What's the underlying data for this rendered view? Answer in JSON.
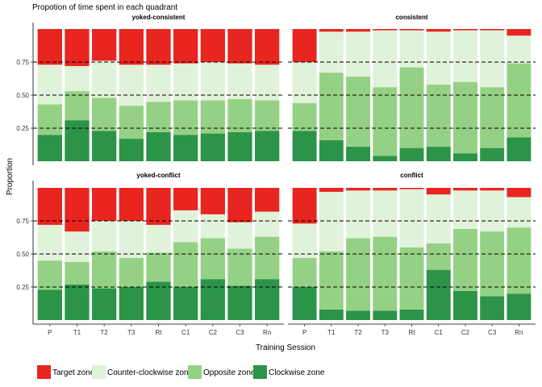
{
  "chart_data": {
    "type": "bar",
    "stacked": true,
    "title": "Propotion of time spent in each quadrant",
    "xlabel": "Training Session",
    "ylabel": "Proportion",
    "ylim": [
      0,
      1
    ],
    "yticks": [
      "0.25",
      "0.50",
      "0.75"
    ],
    "ytick_values": [
      0.25,
      0.5,
      0.75
    ],
    "reference_lines": [
      0.25,
      0.5,
      0.75
    ],
    "categories": [
      "P",
      "T1",
      "T2",
      "T3",
      "Rt",
      "C1",
      "C2",
      "C3",
      "Rn"
    ],
    "legend_position": "bottom",
    "legend": [
      {
        "name": "Target zone",
        "color": "#e8251f"
      },
      {
        "name": "Counter-clockwise zone",
        "color": "#e1f2da"
      },
      {
        "name": "Opposite zone",
        "color": "#94d184"
      },
      {
        "name": "Clockwise zone",
        "color": "#2b9448"
      }
    ],
    "panels": [
      {
        "title": "yoked-consistent",
        "series": [
          {
            "name": "Clockwise zone",
            "values": [
              0.2,
              0.31,
              0.23,
              0.17,
              0.22,
              0.2,
              0.21,
              0.22,
              0.23
            ]
          },
          {
            "name": "Opposite zone",
            "values": [
              0.23,
              0.22,
              0.25,
              0.25,
              0.23,
              0.26,
              0.25,
              0.25,
              0.23
            ]
          },
          {
            "name": "Counter-clockwise zone",
            "values": [
              0.3,
              0.19,
              0.28,
              0.31,
              0.28,
              0.28,
              0.29,
              0.27,
              0.27
            ]
          },
          {
            "name": "Target zone",
            "values": [
              0.27,
              0.28,
              0.24,
              0.27,
              0.27,
              0.26,
              0.25,
              0.26,
              0.27
            ]
          }
        ]
      },
      {
        "title": "consistent",
        "series": [
          {
            "name": "Clockwise zone",
            "values": [
              0.23,
              0.16,
              0.11,
              0.04,
              0.1,
              0.11,
              0.06,
              0.1,
              0.18
            ]
          },
          {
            "name": "Opposite zone",
            "values": [
              0.21,
              0.51,
              0.53,
              0.52,
              0.61,
              0.47,
              0.54,
              0.46,
              0.56
            ]
          },
          {
            "name": "Counter-clockwise zone",
            "values": [
              0.31,
              0.31,
              0.34,
              0.43,
              0.28,
              0.4,
              0.39,
              0.43,
              0.21
            ]
          },
          {
            "name": "Target zone",
            "values": [
              0.25,
              0.02,
              0.02,
              0.01,
              0.01,
              0.02,
              0.01,
              0.01,
              0.05
            ]
          }
        ]
      },
      {
        "title": "yoked-conflict",
        "series": [
          {
            "name": "Clockwise zone",
            "values": [
              0.23,
              0.27,
              0.24,
              0.25,
              0.29,
              0.25,
              0.31,
              0.26,
              0.31
            ]
          },
          {
            "name": "Opposite zone",
            "values": [
              0.22,
              0.17,
              0.28,
              0.22,
              0.22,
              0.34,
              0.31,
              0.28,
              0.32
            ]
          },
          {
            "name": "Counter-clockwise zone",
            "values": [
              0.27,
              0.23,
              0.23,
              0.28,
              0.21,
              0.24,
              0.18,
              0.2,
              0.19
            ]
          },
          {
            "name": "Target zone",
            "values": [
              0.28,
              0.33,
              0.25,
              0.25,
              0.28,
              0.17,
              0.2,
              0.26,
              0.18
            ]
          }
        ]
      },
      {
        "title": "conflict",
        "series": [
          {
            "name": "Clockwise zone",
            "values": [
              0.25,
              0.08,
              0.07,
              0.07,
              0.08,
              0.38,
              0.22,
              0.18,
              0.2
            ]
          },
          {
            "name": "Opposite zone",
            "values": [
              0.22,
              0.44,
              0.55,
              0.56,
              0.47,
              0.2,
              0.47,
              0.49,
              0.5
            ]
          },
          {
            "name": "Counter-clockwise zone",
            "values": [
              0.26,
              0.45,
              0.36,
              0.35,
              0.44,
              0.37,
              0.29,
              0.31,
              0.23
            ]
          },
          {
            "name": "Target zone",
            "values": [
              0.27,
              0.03,
              0.02,
              0.02,
              0.01,
              0.05,
              0.02,
              0.02,
              0.07
            ]
          }
        ]
      }
    ]
  }
}
